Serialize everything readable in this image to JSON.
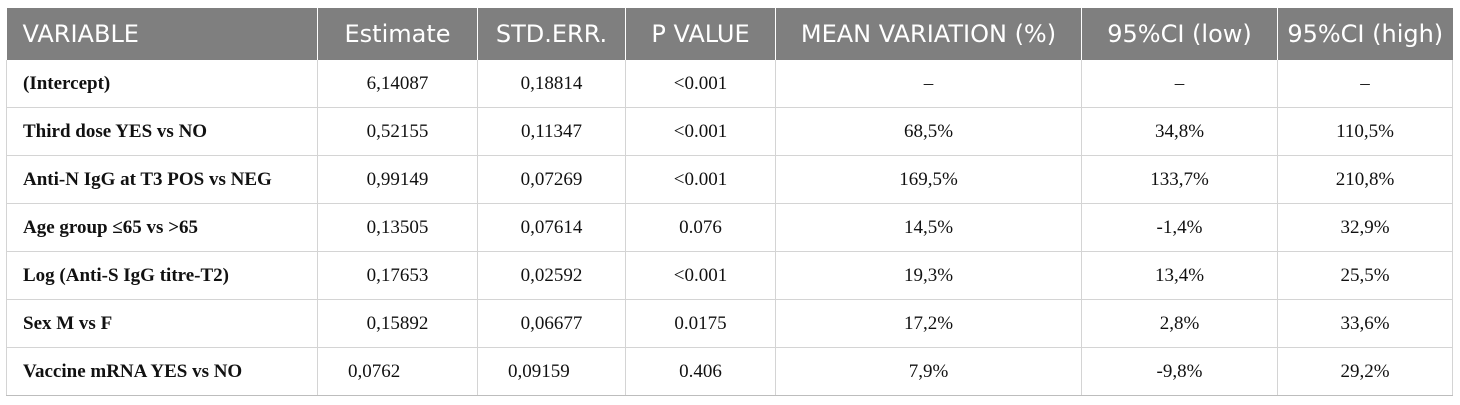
{
  "table": {
    "headers": [
      "VARIABLE",
      "Estimate",
      "STD.ERR.",
      "P VALUE",
      "MEAN VARIATION (%)",
      "95%CI (low)",
      "95%CI (high)"
    ],
    "rows": [
      [
        "(Intercept)",
        "6,14087",
        "0,18814",
        "<0.001",
        "–",
        "–",
        "–"
      ],
      [
        "Third dose YES vs NO",
        "0,52155",
        "0,11347",
        "<0.001",
        "68,5%",
        "34,8%",
        "110,5%"
      ],
      [
        "Anti-N IgG at T3 POS vs NEG",
        "0,99149",
        "0,07269",
        "<0.001",
        "169,5%",
        "133,7%",
        "210,8%"
      ],
      [
        "Age group ≤65 vs >65",
        "0,13505",
        "0,07614",
        "0.076",
        "14,5%",
        "-1,4%",
        "32,9%"
      ],
      [
        "Log (Anti-S IgG titre-T2)",
        "0,17653",
        "0,02592",
        "<0.001",
        "19,3%",
        "13,4%",
        "25,5%"
      ],
      [
        "Sex M vs F",
        "0,15892",
        "0,06677",
        "0.0175",
        "17,2%",
        "2,8%",
        "33,6%"
      ],
      [
        "Vaccine mRNA YES vs NO",
        "0,0762",
        "0,09159",
        "0.406",
        "7,9%",
        "-9,8%",
        "29,2%"
      ]
    ]
  }
}
